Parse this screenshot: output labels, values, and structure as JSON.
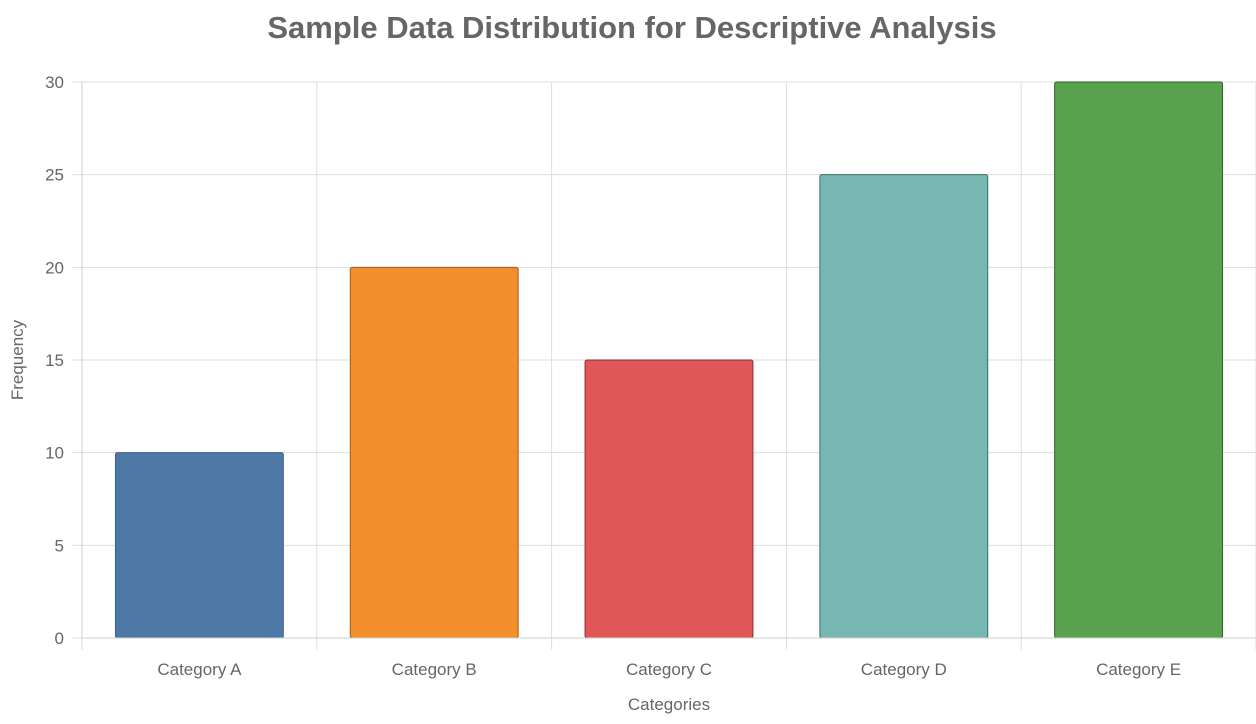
{
  "chart_data": {
    "type": "bar",
    "title": "Sample Data Distribution for Descriptive Analysis",
    "xlabel": "Categories",
    "ylabel": "Frequency",
    "categories": [
      "Category A",
      "Category B",
      "Category C",
      "Category D",
      "Category E"
    ],
    "values": [
      10,
      20,
      15,
      25,
      30
    ],
    "colors": [
      "#4e79a7",
      "#f28e2c",
      "#e15759",
      "#76b7b2",
      "#59a14f"
    ],
    "border_colors": [
      "#3e6185",
      "#a85a12",
      "#8c2a2c",
      "#3f6f6a",
      "#2f5f2a"
    ],
    "ylim": [
      0,
      30
    ],
    "yticks": [
      0,
      5,
      10,
      15,
      20,
      25,
      30
    ],
    "grid": true,
    "legend": "none"
  }
}
